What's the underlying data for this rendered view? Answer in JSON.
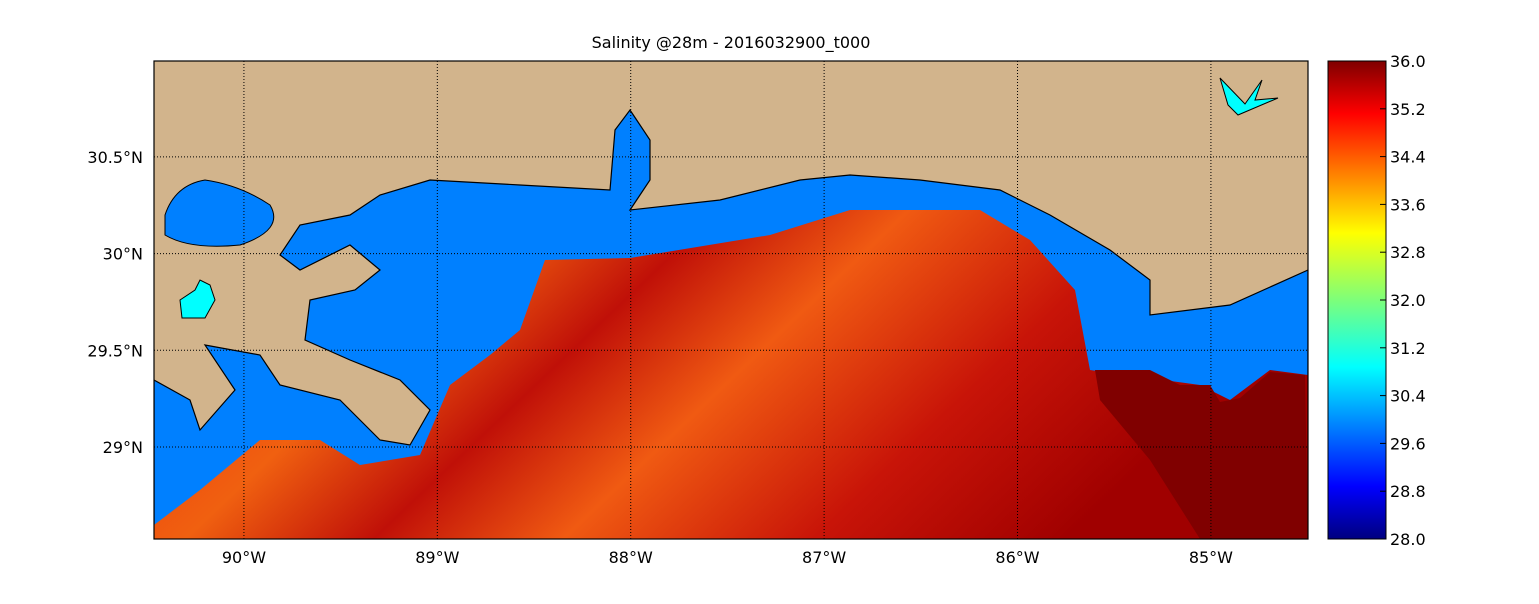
{
  "map": {
    "title": "Salinity @28m - 2016032900_t000",
    "xlim": [
      -90.465,
      -84.498
    ],
    "ylim": [
      28.524,
      30.996
    ],
    "lon_ticks": [
      {
        "value": -90,
        "label": "90°W"
      },
      {
        "value": -89,
        "label": "89°W"
      },
      {
        "value": -88,
        "label": "88°W"
      },
      {
        "value": -87,
        "label": "87°W"
      },
      {
        "value": -86,
        "label": "86°W"
      },
      {
        "value": -85,
        "label": "85°W"
      }
    ],
    "lat_ticks": [
      {
        "value": 29,
        "label": "29°N"
      },
      {
        "value": 29.5,
        "label": "29.5°N"
      },
      {
        "value": 30,
        "label": "30°N"
      },
      {
        "value": 30.5,
        "label": "30.5°N"
      }
    ],
    "grid": true
  },
  "colorbar": {
    "lim": [
      28,
      36
    ],
    "colormap": "jet",
    "ticks": [
      {
        "value": 28,
        "label": "28.0"
      },
      {
        "value": 28.8,
        "label": "28.8"
      },
      {
        "value": 29.6,
        "label": "29.6"
      },
      {
        "value": 30.4,
        "label": "30.4"
      },
      {
        "value": 31.2,
        "label": "31.2"
      },
      {
        "value": 32,
        "label": "32.0"
      },
      {
        "value": 32.8,
        "label": "32.8"
      },
      {
        "value": 33.6,
        "label": "33.6"
      },
      {
        "value": 34.4,
        "label": "34.4"
      },
      {
        "value": 35.2,
        "label": "35.2"
      },
      {
        "value": 36,
        "label": "36.0"
      }
    ]
  }
}
